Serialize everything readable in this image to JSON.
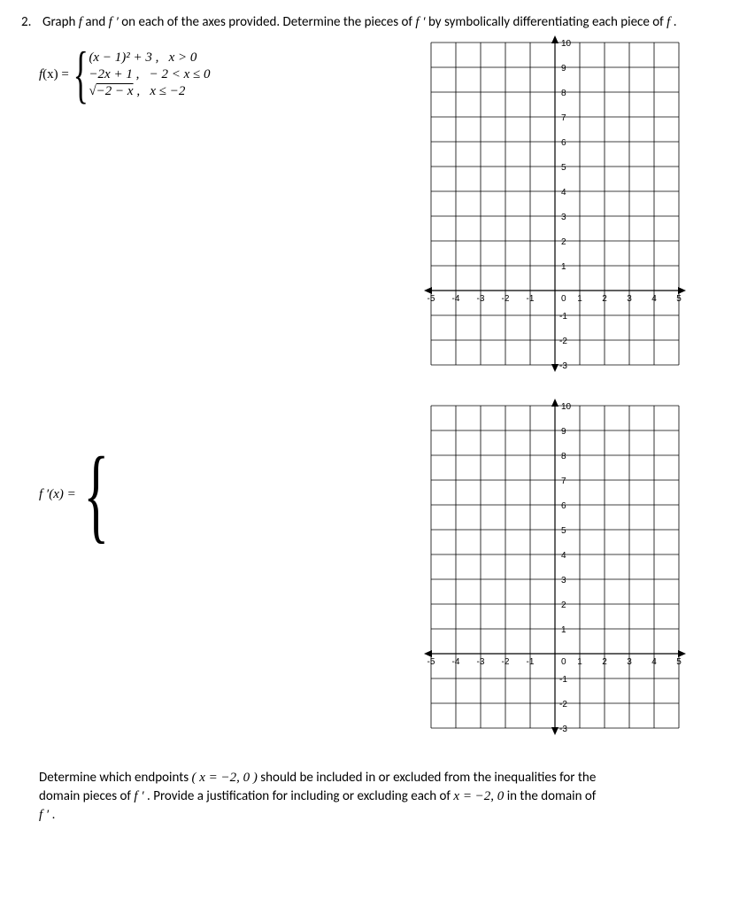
{
  "problem": {
    "number": "2.",
    "stem_a": "Graph ",
    "stem_b": " and ",
    "stem_c": " on each of the axes provided.  Determine the pieces of ",
    "stem_d": " by symbolically differentiating each piece of ",
    "stem_e": " .",
    "f": "f",
    "fprime": "f ′"
  },
  "piecewise_f": {
    "lhs_pre": "f",
    "lhs_paren": "(x) =",
    "cases": [
      {
        "expr": "(x − 1)² + 3 ,",
        "cond": "x > 0"
      },
      {
        "expr": "−2x + 1 ,",
        "cond": "− 2 < x ≤ 0"
      },
      {
        "expr_pre": "√",
        "expr_radicand": "−2 − x",
        "expr_post": " ,",
        "cond": "x ≤ −2"
      }
    ]
  },
  "piecewise_fprime": {
    "lhs": "f ′(x) ="
  },
  "grid": {
    "x_ticks": [
      -5,
      -4,
      -3,
      -2,
      -1,
      0,
      1,
      2,
      3,
      4,
      5
    ],
    "y_ticks_pos": [
      1,
      2,
      3,
      4,
      5,
      6,
      7,
      8,
      9,
      10
    ],
    "y_ticks_neg": [
      -1,
      -2,
      -3
    ],
    "xmin": -5,
    "xmax": 5,
    "ymin": -3,
    "ymax": 10,
    "cell": 28,
    "label_fontsize": 10
  },
  "bottom": {
    "line1_a": "Determine which endpoints ",
    "line1_b": " should be included in or excluded from the inequalities for the",
    "point": "( x = −2, 0 )",
    "line2_a": "domain pieces of ",
    "line2_b": ". Provide a justification for including or excluding each of ",
    "line2_c": " in the domain of",
    "eq": "x = −2, 0",
    "line3": "f ′ ."
  }
}
